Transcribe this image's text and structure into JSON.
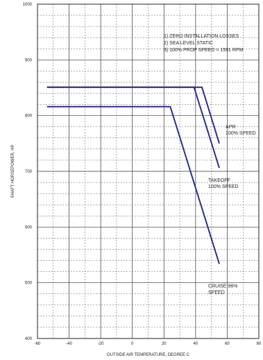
{
  "chart_data": {
    "type": "line",
    "title": "",
    "xlabel": "OUTSIDE AIR TEMPERATURE, DEGREE C",
    "ylabel": "SHAFT HORSEPOWER, HP",
    "xlim": [
      -60,
      80
    ],
    "ylim": [
      400,
      1000
    ],
    "x_ticks": [
      "-60",
      "-40",
      "-20",
      "0",
      "20",
      "40",
      "60",
      "80"
    ],
    "y_ticks": [
      "400",
      "500",
      "600",
      "700",
      "800",
      "900",
      "1000"
    ],
    "grid": true,
    "notes": [
      "1) ZERO INSTALLATION LOSSES",
      "2) SEA LEVEL STATIC",
      "3) 100% PROP SPEED = 1591 RPM"
    ],
    "series": [
      {
        "label_lines": [
          "APR",
          "100% SPEED"
        ],
        "color": "#2e2f8c",
        "x": [
          -54,
          44,
          55
        ],
        "y": [
          851,
          851,
          750
        ]
      },
      {
        "label_lines": [
          "TAKEOFF",
          "100% SPEED"
        ],
        "color": "#2e2f8c",
        "x": [
          -54,
          39,
          55
        ],
        "y": [
          851,
          851,
          706
        ]
      },
      {
        "label_lines": [
          "CRUISE 96%",
          "SPEED"
        ],
        "color": "#2e2f8c",
        "x": [
          -54,
          24,
          55
        ],
        "y": [
          816,
          816,
          534
        ]
      }
    ]
  }
}
